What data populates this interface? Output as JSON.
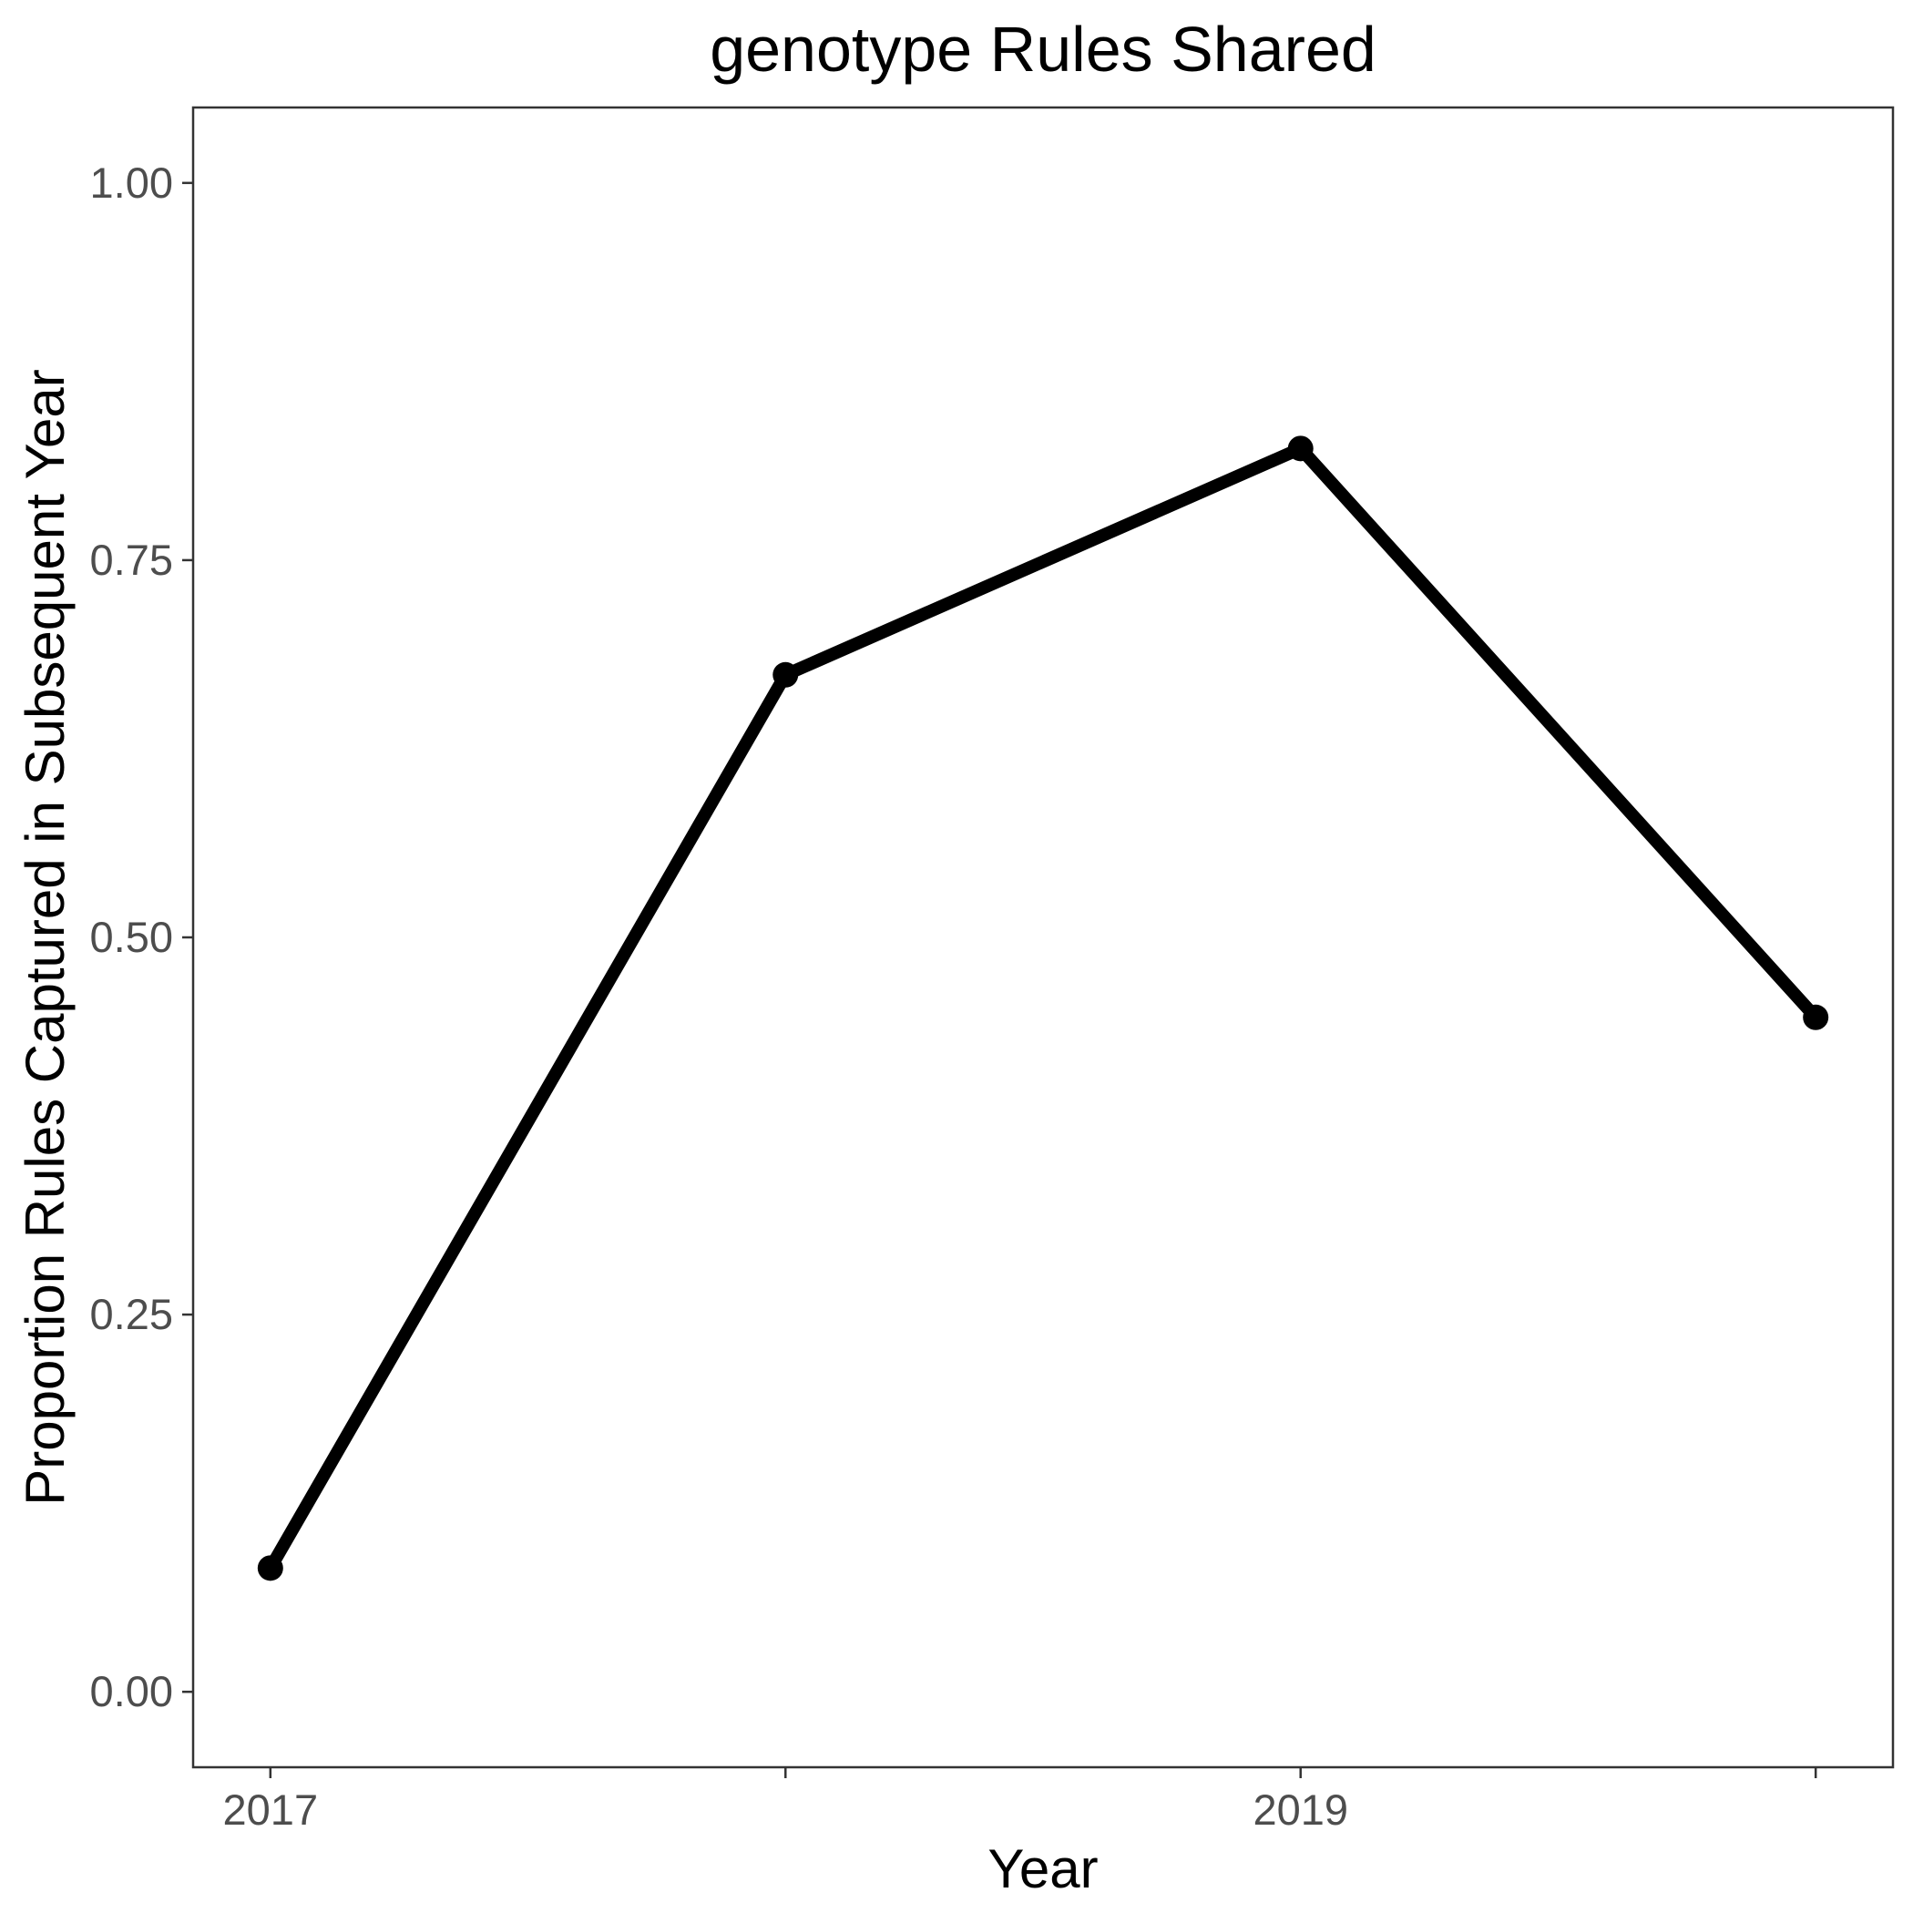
{
  "chart_data": {
    "type": "line",
    "title": "genotype Rules Shared",
    "xlabel": "Year",
    "ylabel": "Proportion Rules Captured in Subsequent Year",
    "x": [
      2017,
      2018,
      2019,
      2020
    ],
    "xlim": [
      2016.85,
      2020.15
    ],
    "ylim": [
      -0.05,
      1.05
    ],
    "x_ticks": [
      2017,
      2018,
      2019,
      2020
    ],
    "x_tick_labels": [
      "2017",
      "",
      "2019",
      ""
    ],
    "y_ticks": [
      0,
      0.25,
      0.5,
      0.75,
      1.0
    ],
    "y_tick_labels": [
      "0.00",
      "0.25",
      "0.50",
      "0.75",
      "1.00"
    ],
    "grid": false,
    "series": [
      {
        "values": [
          0.082,
          0.674,
          0.824,
          0.447
        ],
        "color": "#000000"
      }
    ]
  }
}
